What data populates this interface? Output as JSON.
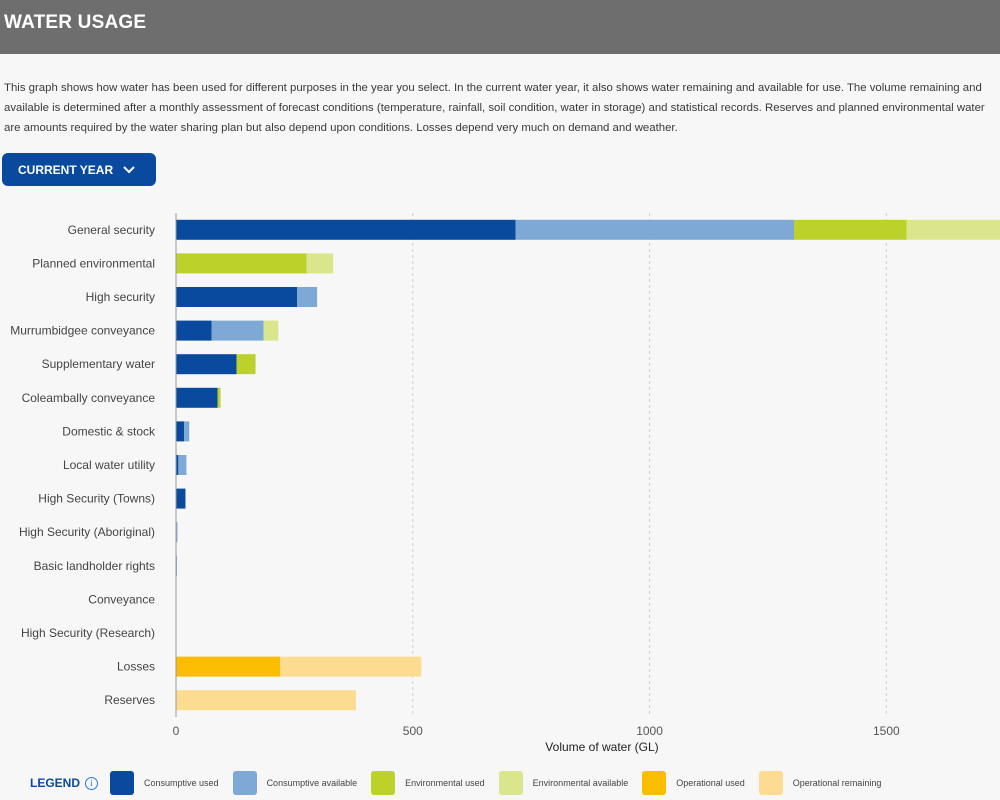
{
  "header": {
    "title": "WATER USAGE"
  },
  "description": "This graph shows how water has been used for different purposes in the year you select. In the current water year, it also shows water remaining and available for use. The volume remaining and available is determined after a monthly assessment of forecast conditions (temperature, rainfall, soil condition, water in storage) and statistical records. Reserves and planned environmental water are amounts required by the water sharing plan but also depend upon conditions. Losses depend very much on demand and weather.",
  "year_selector": {
    "label": "CURRENT YEAR"
  },
  "legend": {
    "title": "LEGEND",
    "info_icon": "info-icon",
    "items": [
      {
        "label": "Consumptive used",
        "color": "#0a4a9e"
      },
      {
        "label": "Consumptive available",
        "color": "#7ea8d6"
      },
      {
        "label": "Environmental used",
        "color": "#bcd22a"
      },
      {
        "label": "Environmental available",
        "color": "#dbe68c"
      },
      {
        "label": "Operational used",
        "color": "#fbbd00"
      },
      {
        "label": "Operational remaining",
        "color": "#fddc91"
      }
    ]
  },
  "chart_data": {
    "type": "bar",
    "orientation": "horizontal",
    "stacked": true,
    "xlabel": "Volume of water (GL)",
    "xlim": [
      0,
      1740
    ],
    "xticks": [
      0,
      500,
      1000,
      1500
    ],
    "grid": "vertical dashed",
    "categories": [
      "General security",
      "Planned environmental",
      "High security",
      "Murrumbidgee conveyance",
      "Supplementary water",
      "Coleambally conveyance",
      "Domestic & stock",
      "Local water utility",
      "High Security (Towns)",
      "High Security (Aboriginal)",
      "Basic landholder rights",
      "Conveyance",
      "High Security (Research)",
      "Losses",
      "Reserves"
    ],
    "series": [
      {
        "name": "Consumptive used",
        "color": "#0a4a9e",
        "values": [
          717,
          0,
          256,
          75,
          128,
          88,
          17,
          5,
          20,
          1,
          1,
          0,
          0,
          0,
          0
        ]
      },
      {
        "name": "Consumptive available",
        "color": "#7ea8d6",
        "values": [
          588,
          0,
          42,
          110,
          0,
          0,
          11,
          17,
          0,
          2,
          1,
          0,
          1,
          0,
          0
        ]
      },
      {
        "name": "Environmental used",
        "color": "#bcd22a",
        "values": [
          238,
          276,
          0,
          0,
          40,
          6,
          0,
          0,
          0,
          0,
          0,
          1,
          0,
          0,
          0
        ]
      },
      {
        "name": "Environmental available",
        "color": "#dbe68c",
        "values": [
          200,
          56,
          0,
          31,
          0,
          0,
          0,
          0,
          0,
          0,
          0,
          0,
          0,
          0,
          0
        ]
      },
      {
        "name": "Operational used",
        "color": "#fbbd00",
        "values": [
          0,
          0,
          0,
          0,
          0,
          0,
          0,
          0,
          0,
          0,
          0,
          0,
          0,
          220,
          0
        ]
      },
      {
        "name": "Operational remaining",
        "color": "#fddc91",
        "values": [
          0,
          0,
          0,
          0,
          0,
          0,
          0,
          0,
          0,
          0,
          0,
          0,
          0,
          298,
          380
        ]
      }
    ]
  }
}
